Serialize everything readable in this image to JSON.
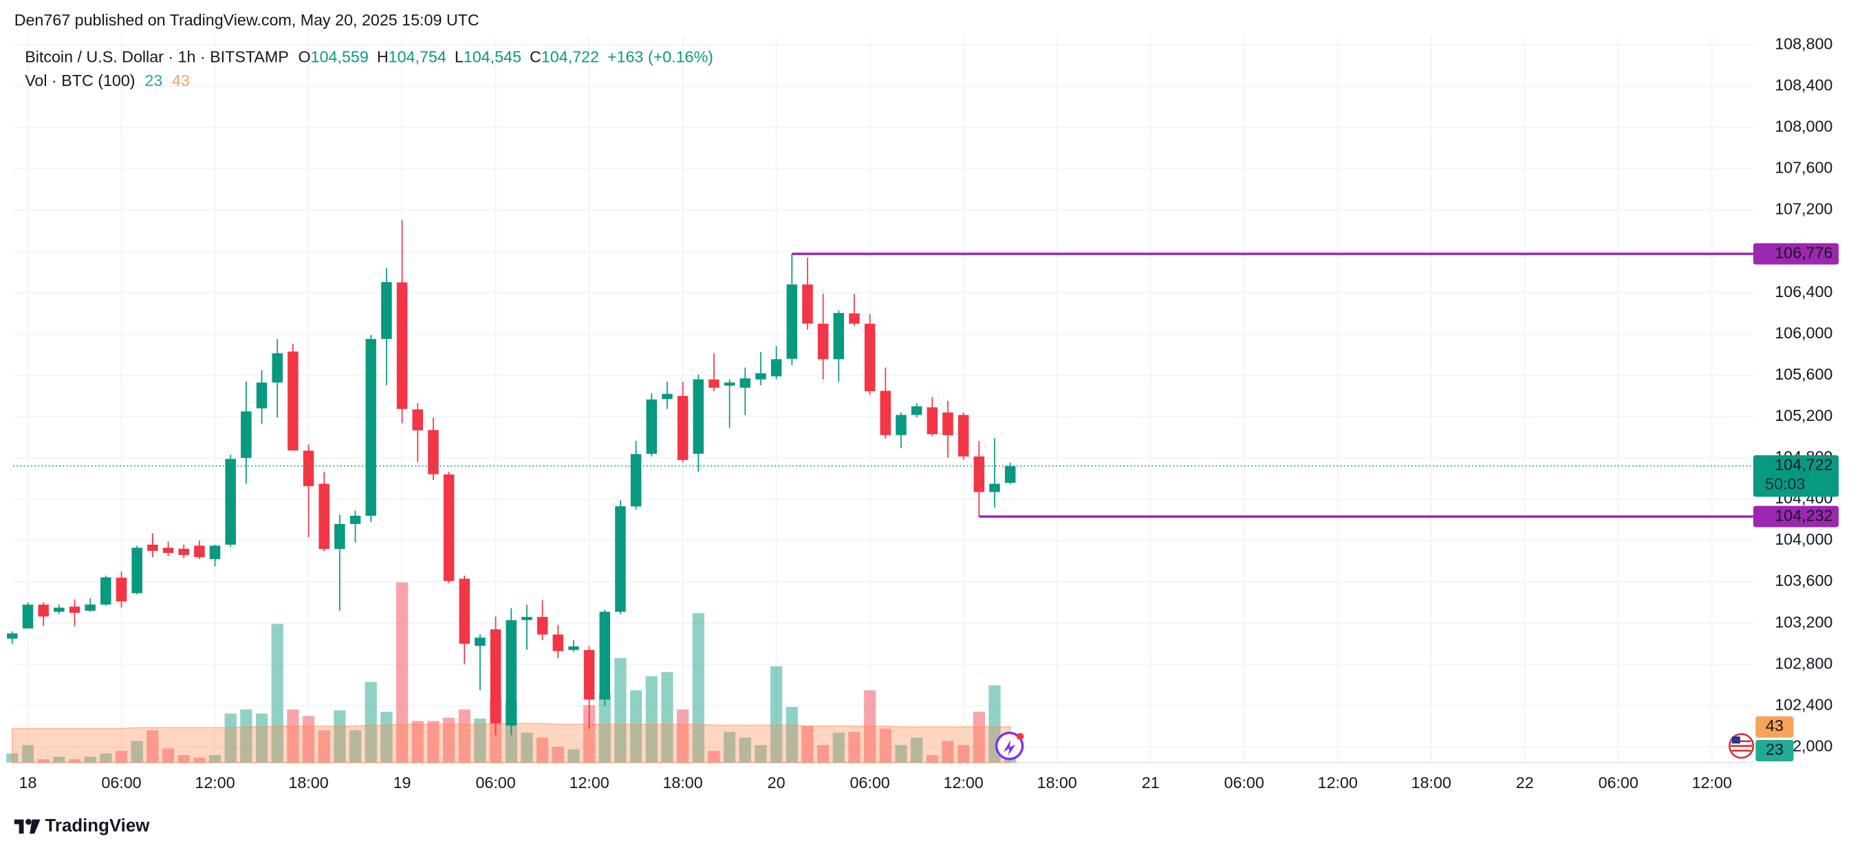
{
  "page_header": "Den767 published on TradingView.com, May 20, 2025 15:09 UTC",
  "footer_brand": "TradingView",
  "chart_data": {
    "type": "candlestick",
    "title": "Bitcoin / U.S. Dollar · 1h · BITSTAMP",
    "legend": {
      "o": "O",
      "open": "104,559",
      "h": "H",
      "high": "104,754",
      "l": "L",
      "low": "104,545",
      "c": "C",
      "close": "104,722",
      "change": "+163 (+0.16%)"
    },
    "volume_legend": {
      "title": "Vol · BTC (100)",
      "volume": "23",
      "ma": "43"
    },
    "countdown": "50:03",
    "x": [
      -1,
      0,
      1,
      2,
      3,
      4,
      5,
      6,
      7,
      8,
      9,
      10,
      11,
      12,
      13,
      14,
      15,
      16,
      17,
      18,
      19,
      20,
      21,
      22,
      23,
      24,
      25,
      26,
      27,
      28,
      29,
      30,
      31,
      32,
      33,
      34,
      35,
      36,
      37,
      38,
      39,
      40,
      41,
      42,
      43,
      44,
      45,
      46,
      47,
      48,
      49,
      50,
      51,
      52,
      53,
      54,
      55,
      56,
      57,
      58,
      59,
      60,
      61,
      62,
      63
    ],
    "open": [
      103050,
      103149,
      103379,
      103310,
      103360,
      103320,
      103380,
      103640,
      103490,
      103960,
      103930,
      103920,
      103950,
      103820,
      103960,
      104800,
      105280,
      105530,
      105830,
      104870,
      104550,
      103918,
      104160,
      104240,
      105952,
      106500,
      105270,
      105070,
      104640,
      103630,
      102980,
      103140,
      102207,
      103230,
      103260,
      103090,
      102940,
      102940,
      102460,
      103310,
      104330,
      104840,
      105370,
      105400,
      104840,
      105560,
      105500,
      105480,
      105560,
      105590,
      105760,
      106480,
      106100,
      105756,
      106200,
      106100,
      105450,
      105021,
      105216,
      105290,
      105240,
      105216,
      104814,
      104470,
      104559
    ],
    "high": [
      103120,
      103402,
      103402,
      103380,
      103430,
      103440,
      103660,
      103700,
      103950,
      104070,
      103990,
      103960,
      104000,
      103960,
      104830,
      105540,
      105650,
      105950,
      105905,
      104930,
      104665,
      104250,
      104290,
      105990,
      106640,
      107100,
      105330,
      105190,
      104665,
      103660,
      103091,
      103264,
      103344,
      103379,
      103425,
      103183,
      103034,
      102977,
      103330,
      104389,
      104964,
      105424,
      105538,
      105538,
      105607,
      105814,
      105560,
      105676,
      105825,
      105883,
      106776,
      106740,
      106388,
      106227,
      106388,
      106193,
      105676,
      105240,
      105331,
      105389,
      105354,
      105240,
      104964,
      104990,
      104754
    ],
    "low": [
      103000,
      103149,
      103172,
      103290,
      103170,
      103310,
      103370,
      103350,
      103480,
      103840,
      103850,
      103830,
      103820,
      103750,
      103940,
      104550,
      105130,
      105190,
      104872,
      104033,
      103895,
      103320,
      103980,
      104180,
      105504,
      105136,
      104760,
      104585,
      103585,
      102804,
      102550,
      102115,
      102115,
      102942,
      103034,
      102862,
      102920,
      102173,
      102400,
      103287,
      104298,
      104814,
      105274,
      104757,
      104665,
      105446,
      105090,
      105216,
      105503,
      105561,
      105699,
      106043,
      105561,
      105538,
      106078,
      105412,
      104987,
      104895,
      105194,
      105010,
      104803,
      104780,
      104232,
      104320,
      104545
    ],
    "close": [
      103100,
      103379,
      103264,
      103350,
      103300,
      103380,
      103643,
      103410,
      103930,
      103900,
      103880,
      103860,
      103840,
      103950,
      104790,
      105250,
      105530,
      105814,
      104872,
      104527,
      103918,
      104160,
      104240,
      105952,
      106503,
      105274,
      105067,
      104642,
      103608,
      103000,
      103060,
      102230,
      103229,
      103260,
      103090,
      102930,
      102975,
      102460,
      103310,
      104332,
      104837,
      105366,
      105420,
      104780,
      105561,
      105480,
      105530,
      105570,
      105620,
      105756,
      106480,
      106101,
      105756,
      106204,
      106100,
      105446,
      105021,
      105216,
      105300,
      105030,
      105020,
      104814,
      104470,
      104550,
      104722
    ],
    "volume": [
      11,
      21,
      4,
      7,
      4,
      7,
      11,
      14,
      26,
      39,
      17,
      9,
      6,
      9,
      59,
      64,
      59,
      167,
      64,
      56,
      39,
      63,
      39,
      97,
      61,
      217,
      50,
      50,
      54,
      64,
      53,
      76,
      73,
      36,
      30,
      19,
      16,
      69,
      83,
      126,
      87,
      104,
      109,
      64,
      180,
      14,
      37,
      30,
      21,
      116,
      67,
      44,
      21,
      36,
      37,
      87,
      41,
      21,
      30,
      9,
      26,
      21,
      61,
      93,
      23
    ],
    "volume_ma": [
      41,
      41,
      41,
      41,
      41,
      41,
      41,
      41,
      42,
      42,
      42,
      42,
      42,
      42,
      42,
      43,
      43,
      44,
      44,
      44,
      44,
      44,
      44,
      45,
      45,
      46,
      46,
      46,
      46,
      46,
      46,
      47,
      47,
      47,
      47,
      46,
      46,
      46,
      46,
      46,
      46,
      46,
      46,
      46,
      46,
      45,
      45,
      45,
      45,
      45,
      45,
      44,
      44,
      44,
      44,
      44,
      44,
      43,
      43,
      43,
      43,
      43,
      43,
      43,
      43
    ],
    "up_color": "#089981",
    "down_color": "#f23645",
    "ma_color": "#ff8a50",
    "grid": true,
    "xlim": [
      -0.95,
      110.65
    ],
    "xticks": [
      {
        "value": 0,
        "label": "18"
      },
      {
        "value": 6,
        "label": "06:00"
      },
      {
        "value": 12,
        "label": "12:00"
      },
      {
        "value": 18,
        "label": "18:00"
      },
      {
        "value": 24,
        "label": "19"
      },
      {
        "value": 30,
        "label": "06:00"
      },
      {
        "value": 36,
        "label": "12:00"
      },
      {
        "value": 42,
        "label": "18:00"
      },
      {
        "value": 48,
        "label": "20"
      },
      {
        "value": 54,
        "label": "06:00"
      },
      {
        "value": 60,
        "label": "12:00"
      },
      {
        "value": 66,
        "label": "18:00"
      },
      {
        "value": 72,
        "label": "21"
      },
      {
        "value": 78,
        "label": "06:00"
      },
      {
        "value": 84,
        "label": "12:00"
      },
      {
        "value": 90,
        "label": "18:00"
      },
      {
        "value": 96,
        "label": "22"
      },
      {
        "value": 102,
        "label": "06:00"
      },
      {
        "value": 108,
        "label": "12:00"
      }
    ],
    "ylim": [
      101850,
      108890
    ],
    "yticks": [
      {
        "value": 102000,
        "label": "102,000"
      },
      {
        "value": 102400,
        "label": "102,400"
      },
      {
        "value": 102800,
        "label": "102,800"
      },
      {
        "value": 103200,
        "label": "103,200"
      },
      {
        "value": 103600,
        "label": "103,600"
      },
      {
        "value": 104000,
        "label": "104,000"
      },
      {
        "value": 104400,
        "label": "104,400"
      },
      {
        "value": 104800,
        "label": "104,800"
      },
      {
        "value": 105200,
        "label": "105,200"
      },
      {
        "value": 105600,
        "label": "105,600"
      },
      {
        "value": 106000,
        "label": "106,000"
      },
      {
        "value": 106400,
        "label": "106,400"
      },
      {
        "value": 106800,
        "label": "106,800"
      },
      {
        "value": 107200,
        "label": "107,200"
      },
      {
        "value": 107600,
        "label": "107,600"
      },
      {
        "value": 108000,
        "label": "108,000"
      },
      {
        "value": 108400,
        "label": "108,400"
      },
      {
        "value": 108800,
        "label": "108,800"
      }
    ],
    "levels": [
      {
        "value": 106776,
        "label": "106,776",
        "start": 49,
        "color": "#9c27b0"
      },
      {
        "value": 104232,
        "label": "104,232",
        "start": 61,
        "color": "#9c27b0"
      }
    ]
  }
}
